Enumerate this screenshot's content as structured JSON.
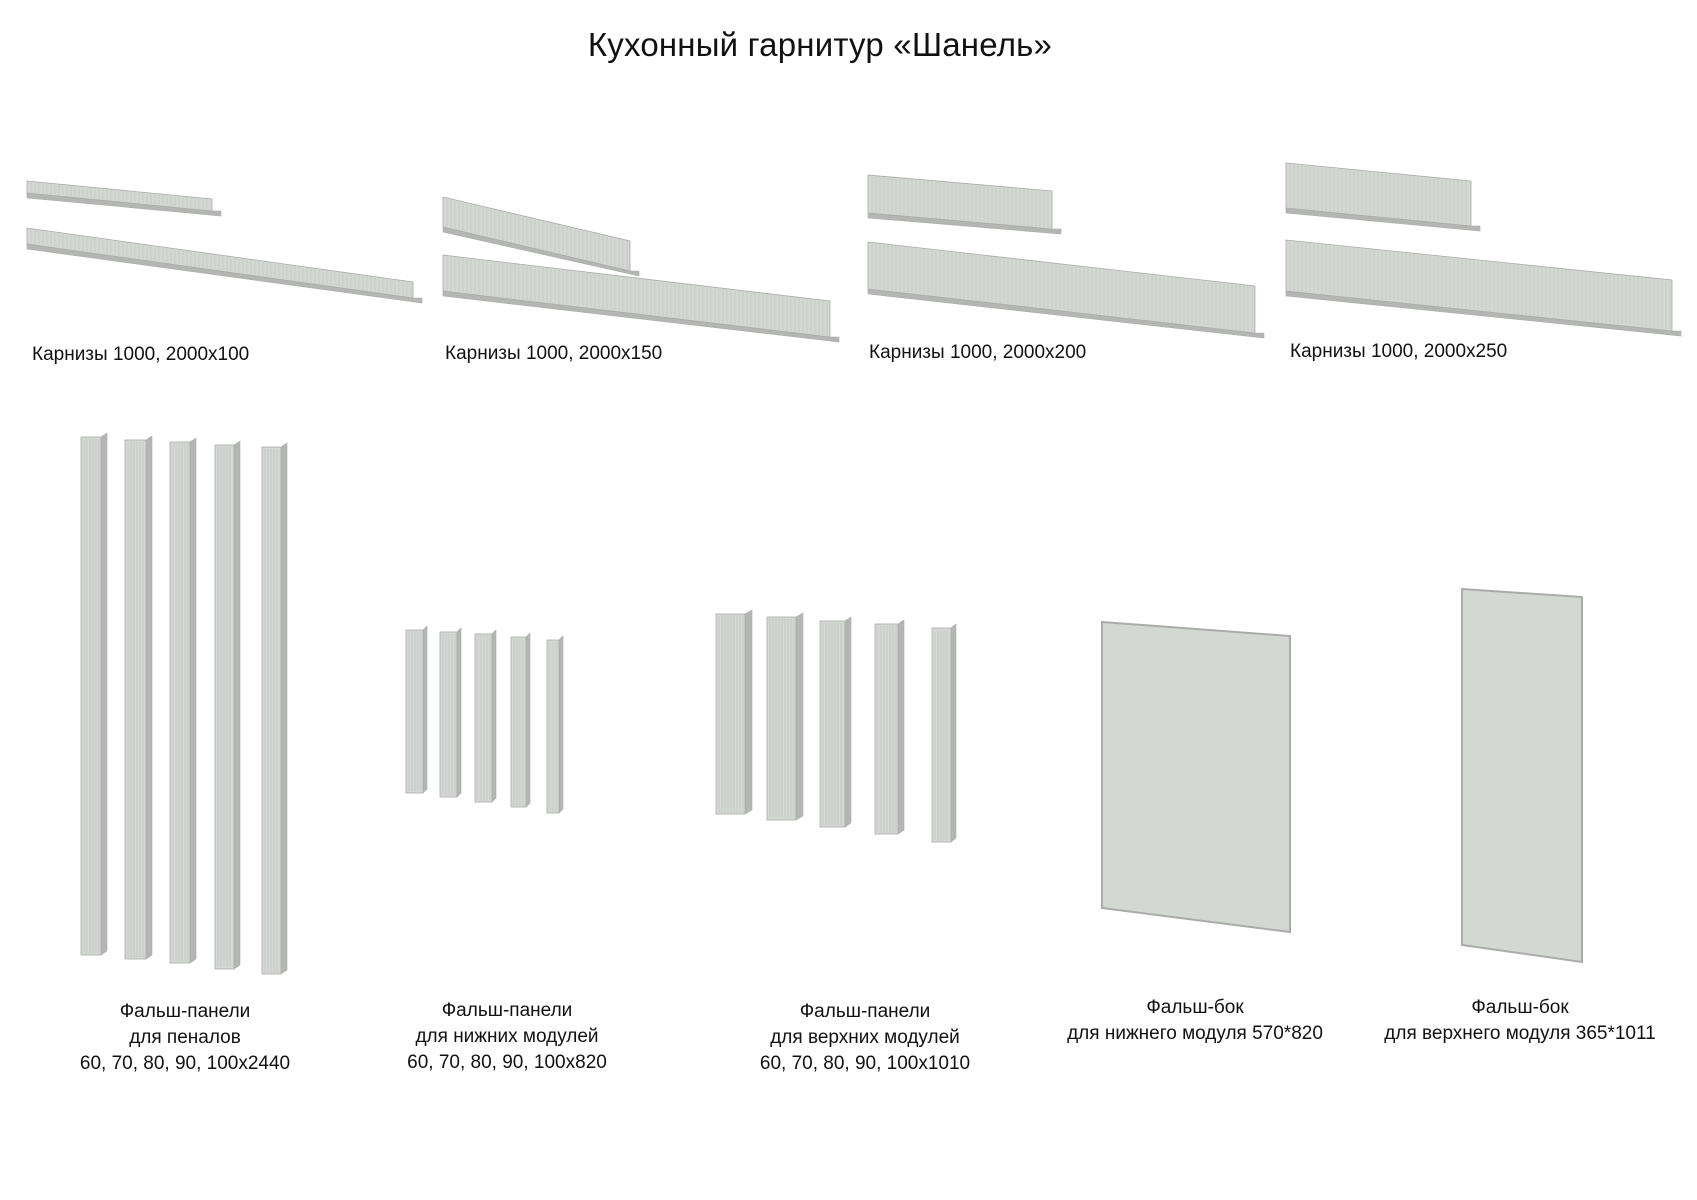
{
  "title": "Кухонный гарнитур «Шанель»",
  "colors": {
    "panel_face": "#d4d8d3",
    "panel_side": "#b3b6b2",
    "panel_edge": "#a9aca8",
    "groove": "#c2c6c1"
  },
  "cornices": [
    {
      "label": "Карнизы 1000, 2000х100"
    },
    {
      "label": "Карнизы 1000, 2000х150"
    },
    {
      "label": "Карнизы 1000, 2000х200"
    },
    {
      "label": "Карнизы 1000, 2000х250"
    }
  ],
  "groups": [
    {
      "lines": [
        "Фальш-панели",
        "для пеналов",
        "60, 70, 80, 90, 100х2440"
      ]
    },
    {
      "lines": [
        "Фальш-панели",
        "для нижних модулей",
        "60, 70, 80, 90, 100х820"
      ]
    },
    {
      "lines": [
        "Фальш-панели",
        "для верхних модулей",
        "60, 70, 80, 90, 100х1010"
      ]
    },
    {
      "lines": [
        "Фальш-бок",
        "для нижнего модуля 570*820"
      ]
    },
    {
      "lines": [
        "Фальш-бок",
        "для верхнего модуля 365*1011"
      ]
    }
  ]
}
